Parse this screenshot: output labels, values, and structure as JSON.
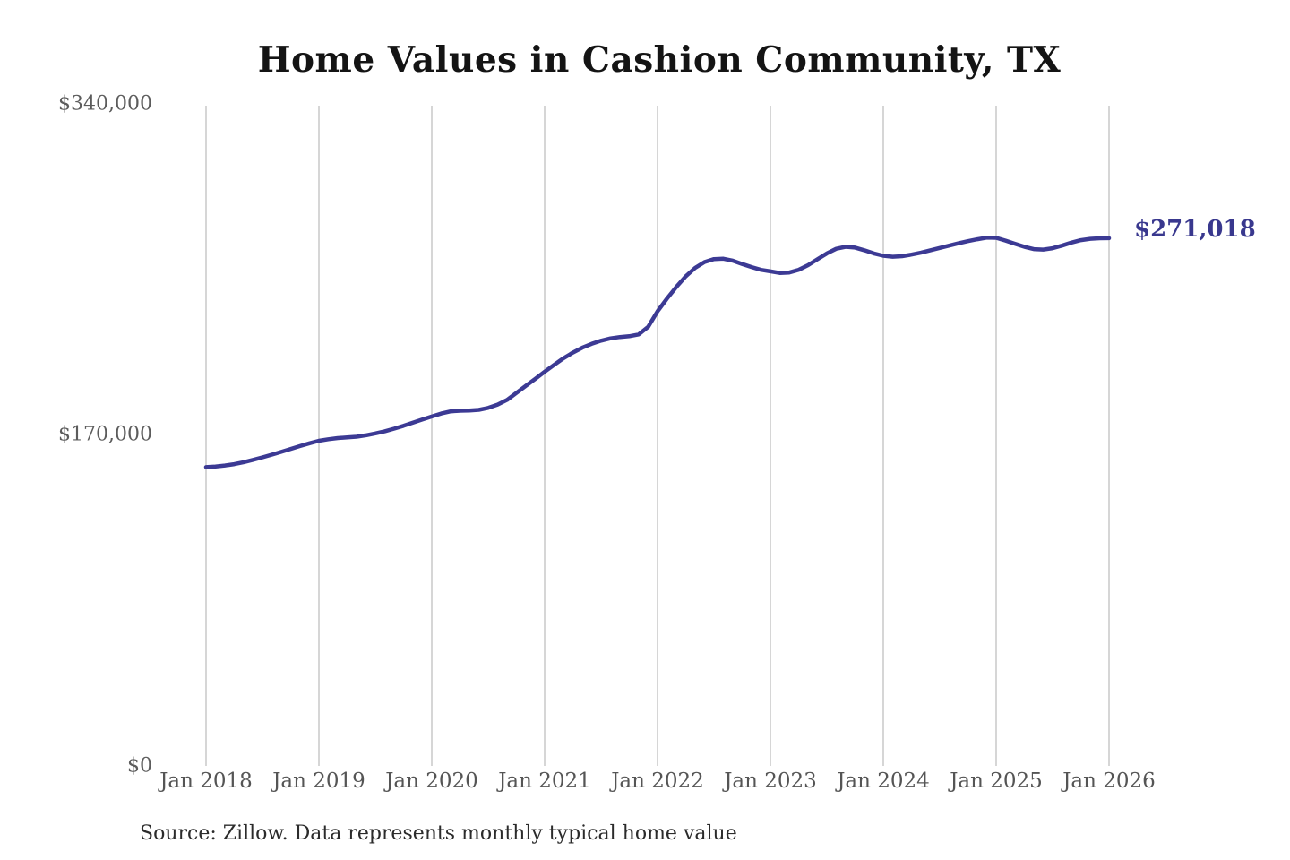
{
  "title": "Home Values in Cashion Community, TX",
  "source_note": "Source: Zillow. Data represents monthly typical home value",
  "chart_data": {
    "type": "line",
    "title": "Home Values in Cashion Community, TX",
    "series_name": "Monthly typical home value",
    "xlabel": "",
    "ylabel": "",
    "ylim": [
      0,
      340000
    ],
    "grid": "vertical",
    "legend_position": "none",
    "y_ticks": [
      "$340,000",
      "$170,000",
      "$0"
    ],
    "y_tick_values": [
      340000,
      170000,
      0
    ],
    "x_ticks": [
      "Jan 2018",
      "Jan 2019",
      "Jan 2020",
      "Jan 2021",
      "Jan 2022",
      "Jan 2023",
      "Jan 2024",
      "Jan 2025",
      "Jan 2026"
    ],
    "end_label": "$271,018",
    "final_value": 271018,
    "line_color": "#3c3a94",
    "grid_color": "#c8c8c8",
    "label_color": "#39388e",
    "months": [
      "2018-01",
      "2018-02",
      "2018-03",
      "2018-04",
      "2018-05",
      "2018-06",
      "2018-07",
      "2018-08",
      "2018-09",
      "2018-10",
      "2018-11",
      "2018-12",
      "2019-01",
      "2019-02",
      "2019-03",
      "2019-04",
      "2019-05",
      "2019-06",
      "2019-07",
      "2019-08",
      "2019-09",
      "2019-10",
      "2019-11",
      "2019-12",
      "2020-01",
      "2020-02",
      "2020-03",
      "2020-04",
      "2020-05",
      "2020-06",
      "2020-07",
      "2020-08",
      "2020-09",
      "2020-10",
      "2020-11",
      "2020-12",
      "2021-01",
      "2021-02",
      "2021-03",
      "2021-04",
      "2021-05",
      "2021-06",
      "2021-07",
      "2021-08",
      "2021-09",
      "2021-10",
      "2021-11",
      "2021-12",
      "2022-01",
      "2022-02",
      "2022-03",
      "2022-04",
      "2022-05",
      "2022-06",
      "2022-07",
      "2022-08",
      "2022-09",
      "2022-10",
      "2022-11",
      "2022-12",
      "2023-01",
      "2023-02",
      "2023-03",
      "2023-04",
      "2023-05",
      "2023-06",
      "2023-07",
      "2023-08",
      "2023-09",
      "2023-10",
      "2023-11",
      "2023-12",
      "2024-01",
      "2024-02",
      "2024-03",
      "2024-04",
      "2024-05",
      "2024-06",
      "2024-07",
      "2024-08",
      "2024-09",
      "2024-10",
      "2024-11",
      "2024-12",
      "2025-01",
      "2025-02",
      "2025-03",
      "2025-04",
      "2025-05",
      "2025-06",
      "2025-07",
      "2025-08",
      "2025-09",
      "2025-10",
      "2025-11",
      "2025-12",
      "2026-01"
    ],
    "values": [
      153500,
      153800,
      154300,
      155000,
      156000,
      157200,
      158500,
      159900,
      161300,
      162800,
      164300,
      165700,
      167000,
      167800,
      168400,
      168700,
      169100,
      169800,
      170800,
      171900,
      173200,
      174700,
      176300,
      177900,
      179500,
      181000,
      182100,
      182400,
      182500,
      182900,
      183900,
      185600,
      188000,
      191600,
      195200,
      198800,
      202500,
      206000,
      209400,
      212300,
      214800,
      216800,
      218400,
      219600,
      220300,
      220700,
      221600,
      225500,
      233500,
      240000,
      246000,
      251500,
      255800,
      258800,
      260300,
      260500,
      259500,
      257800,
      256200,
      254800,
      254000,
      253200,
      253400,
      254800,
      257200,
      260200,
      263200,
      265600,
      266600,
      266200,
      264800,
      263200,
      262000,
      261500,
      261800,
      262600,
      263600,
      264800,
      266000,
      267200,
      268400,
      269500,
      270500,
      271300,
      271200,
      269800,
      268200,
      266600,
      265400,
      265200,
      265900,
      267200,
      268800,
      270000,
      270700,
      271000,
      271018
    ]
  }
}
